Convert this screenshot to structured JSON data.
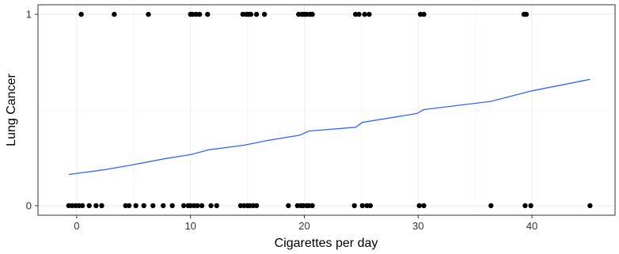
{
  "chart_data": {
    "type": "scatter",
    "xlabel": "Cigarettes per day",
    "ylabel": "Lung Cancer",
    "xlim": [
      -3.4,
      47.3
    ],
    "ylim": [
      -0.05,
      1.05
    ],
    "x_ticks": [
      0,
      10,
      20,
      30,
      40
    ],
    "y_ticks": [
      0,
      1
    ],
    "grid": true,
    "legend": "none",
    "points_y1": [
      0.4,
      3.3,
      6.3,
      10.0,
      10.2,
      10.5,
      10.8,
      11.5,
      14.6,
      14.9,
      15.1,
      15.3,
      15.8,
      16.5,
      19.5,
      19.8,
      20.0,
      20.2,
      20.5,
      20.7,
      24.5,
      24.8,
      25.3,
      25.7,
      30.2,
      30.5,
      39.3,
      39.5
    ],
    "points_y0": [
      -0.7,
      -0.4,
      -0.1,
      0.2,
      0.5,
      1.1,
      1.7,
      2.2,
      4.3,
      4.6,
      5.2,
      5.9,
      6.7,
      7.6,
      8.4,
      9.4,
      9.8,
      10.0,
      10.3,
      10.6,
      11.0,
      11.8,
      12.3,
      14.4,
      14.7,
      15.0,
      15.2,
      15.5,
      15.8,
      18.6,
      19.4,
      19.7,
      19.9,
      20.2,
      20.4,
      20.7,
      24.4,
      25.1,
      25.5,
      25.8,
      30.1,
      30.5,
      36.4,
      39.4,
      39.9,
      45.1
    ],
    "trend_line": {
      "color": "#3366ff",
      "x": [
        -0.7,
        2.5,
        4.6,
        5.7,
        7.7,
        10.1,
        11.6,
        14.7,
        16.7,
        19.6,
        20.4,
        24.5,
        25.1,
        29.9,
        30.5,
        36.4,
        40.0,
        45.1
      ],
      "y": [
        0.163,
        0.188,
        0.21,
        0.222,
        0.245,
        0.268,
        0.292,
        0.316,
        0.34,
        0.368,
        0.39,
        0.41,
        0.435,
        0.482,
        0.502,
        0.545,
        0.6,
        0.66
      ]
    },
    "point_color": "#000000"
  }
}
